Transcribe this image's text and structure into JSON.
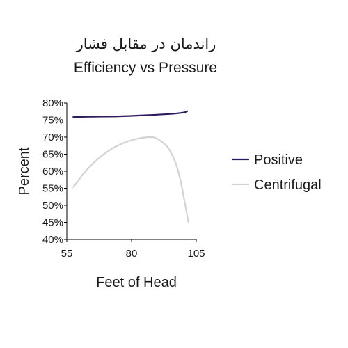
{
  "chart_data": {
    "type": "line",
    "title": "راندمان در مقابل فشار",
    "subtitle": "Efficiency vs Pressure",
    "xlabel": "Feet of Head",
    "ylabel": "Percent",
    "xlim": [
      55,
      105
    ],
    "ylim": [
      40,
      80
    ],
    "xticks": [
      "55",
      "80",
      "105"
    ],
    "yticks": [
      "40%",
      "45%",
      "50%",
      "55%",
      "60%",
      "65%",
      "70%",
      "75%",
      "80%"
    ],
    "legend_position": "right",
    "grid": false,
    "series": [
      {
        "name": "Positive",
        "color": "#2e1a5e",
        "points": [
          [
            57.5,
            75.9
          ],
          [
            65,
            76
          ],
          [
            75,
            76.1
          ],
          [
            85,
            76.4
          ],
          [
            95,
            76.8
          ],
          [
            100,
            77.2
          ],
          [
            101.5,
            77.6
          ]
        ]
      },
      {
        "name": "Centrifugal",
        "color": "#d3d3d3",
        "points": [
          [
            57.5,
            55.3
          ],
          [
            62,
            59.8
          ],
          [
            67,
            63.6
          ],
          [
            72,
            66.4
          ],
          [
            77,
            68.3
          ],
          [
            82,
            69.5
          ],
          [
            87,
            70
          ],
          [
            90,
            69.5
          ],
          [
            94,
            67
          ],
          [
            97,
            62.5
          ],
          [
            99,
            57
          ],
          [
            100.5,
            51
          ],
          [
            101.5,
            47
          ],
          [
            102,
            45
          ]
        ]
      }
    ]
  }
}
